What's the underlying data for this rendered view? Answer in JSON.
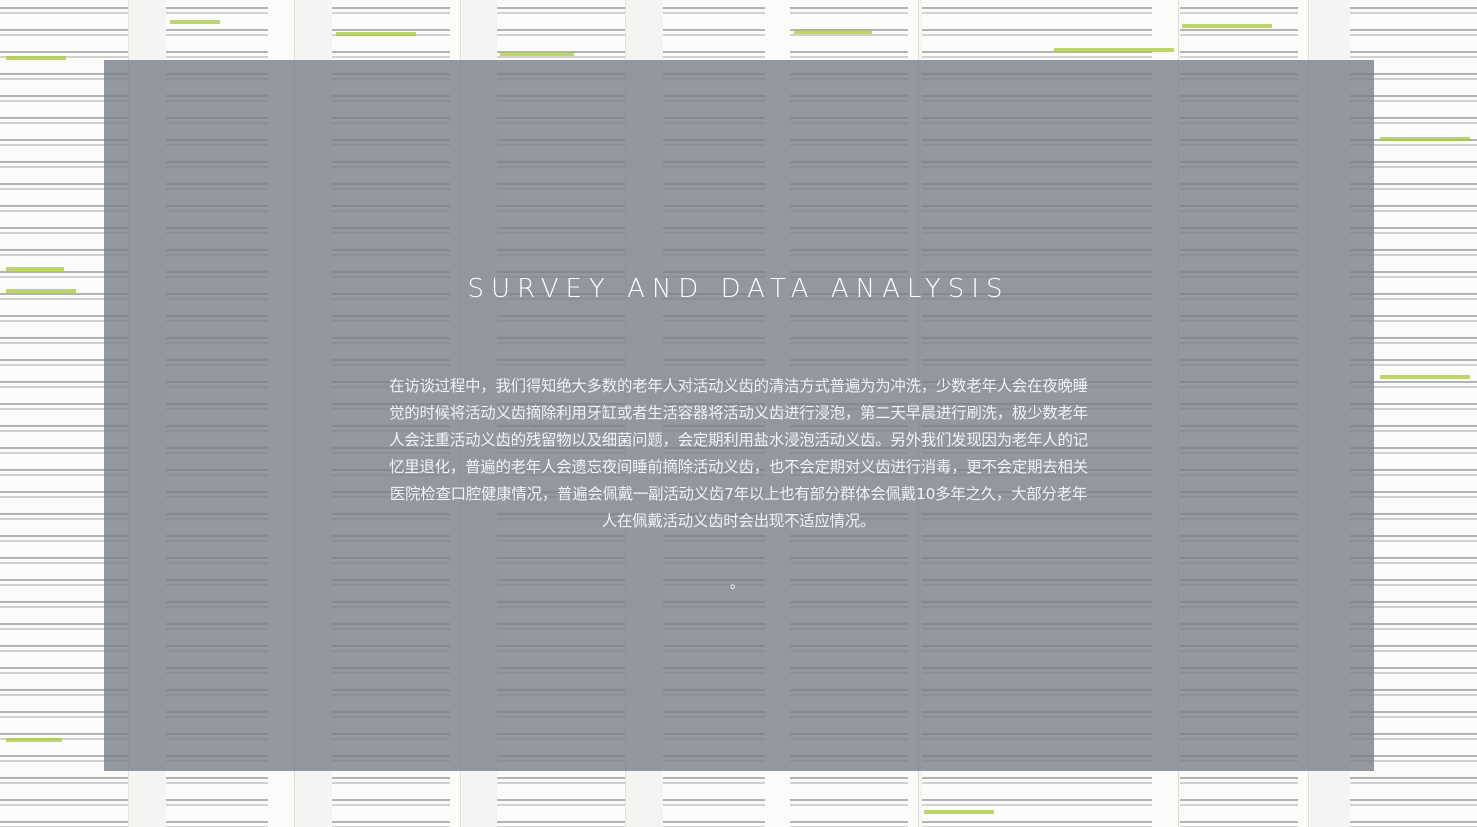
{
  "slide": {
    "title": "SURVEY AND DATA ANALYSIS",
    "body": "在访谈过程中，我们得知绝大多数的老年人对活动义齿的清洁方式普遍为为冲洗，少数老年人会在夜晚睡觉的时候将活动义齿摘除利用牙缸或者生活容器将活动义齿进行浸泡，第二天早晨进行刷洗，极少数老年人会注重活动义齿的残留物以及细菌问题，会定期利用盐水浸泡活动义齿。另外我们发现因为老年人的记忆里退化，普遍的老年人会遗忘夜间睡前摘除活动义齿，也不会定期对义齿进行消毒，更不会定期去相关医院检查口腔健康情况，普遍会佩戴一副活动义齿7年以上也有部分群体会佩戴10多年之久，大部分老年人在佩戴活动义齿时会出现不适应情况。",
    "trailing_mark": "。"
  },
  "background": {
    "image_semantic": "questionnaire-collage"
  }
}
